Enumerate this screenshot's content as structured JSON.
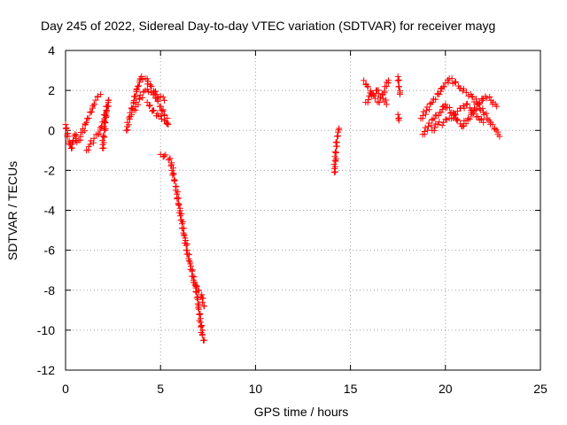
{
  "chart_data": {
    "type": "scatter",
    "title": "Day 245 of 2022, Sidereal Day-to-day VTEC variation (SDTVAR) for receiver mayg",
    "xlabel": "GPS time / hours",
    "ylabel": "SDTVAR / TECUs",
    "xlim": [
      0,
      25
    ],
    "ylim": [
      -12,
      4
    ],
    "xticks": [
      0,
      5,
      10,
      15,
      20,
      25
    ],
    "yticks": [
      -12,
      -10,
      -8,
      -6,
      -4,
      -2,
      0,
      2,
      4
    ],
    "grid": true,
    "marker": "+",
    "color": "#ff0000",
    "series": [
      {
        "name": "SDTVAR",
        "segments": [
          {
            "x": [
              0.0,
              0.1,
              0.2,
              0.3,
              0.4,
              0.5,
              0.6
            ],
            "y": [
              0.3,
              -0.3,
              -0.7,
              -0.9,
              -0.5,
              -0.2,
              -0.6
            ]
          },
          {
            "x": [
              0.7,
              0.9,
              1.1,
              1.3,
              1.5,
              1.7,
              1.85
            ],
            "y": [
              -0.5,
              -0.1,
              0.4,
              0.9,
              1.3,
              1.7,
              1.8
            ]
          },
          {
            "x": [
              1.1,
              1.3,
              1.5,
              1.7,
              1.9,
              2.1,
              2.25
            ],
            "y": [
              -1.0,
              -0.7,
              -0.4,
              -0.2,
              0.2,
              0.8,
              1.4
            ]
          },
          {
            "x": [
              1.95,
              2.05,
              2.15,
              2.25
            ],
            "y": [
              -0.9,
              0.0,
              1.0,
              1.5
            ]
          },
          {
            "x": [
              3.2,
              3.4,
              3.6,
              3.8,
              4.0,
              4.2,
              4.5,
              4.8,
              5.0,
              5.2,
              5.4
            ],
            "y": [
              0.0,
              0.7,
              1.5,
              2.2,
              2.7,
              2.6,
              2.2,
              1.6,
              1.2,
              0.8,
              0.3
            ]
          },
          {
            "x": [
              3.6,
              3.9,
              4.2,
              4.5,
              4.8,
              5.0,
              5.2
            ],
            "y": [
              1.0,
              1.6,
              2.0,
              1.9,
              1.8,
              1.7,
              1.5
            ]
          },
          {
            "x": [
              4.3,
              4.6,
              4.9,
              5.2,
              5.4
            ],
            "y": [
              1.4,
              1.0,
              0.7,
              0.5,
              0.3
            ]
          },
          {
            "x": [
              5.0,
              5.5,
              5.8,
              6.1,
              6.4,
              6.7,
              6.9,
              7.0,
              7.1,
              7.2,
              7.3
            ],
            "y": [
              -1.2,
              -1.4,
              -2.8,
              -4.5,
              -6.0,
              -7.3,
              -8.1,
              -8.8,
              -9.6,
              -10.2,
              -10.5
            ]
          },
          {
            "x": [
              6.8,
              7.0,
              7.2,
              7.3
            ],
            "y": [
              -7.6,
              -8.0,
              -8.4,
              -8.8
            ]
          },
          {
            "x": [
              14.15,
              14.2,
              14.25,
              14.3,
              14.4
            ],
            "y": [
              -2.1,
              -1.5,
              -0.8,
              -0.3,
              0.1
            ]
          },
          {
            "x": [
              15.7,
              15.9,
              16.1,
              16.3,
              16.5,
              16.7,
              16.9,
              17.0
            ],
            "y": [
              2.5,
              2.2,
              1.8,
              1.6,
              1.4,
              1.8,
              2.2,
              2.5
            ]
          },
          {
            "x": [
              15.8,
              16.1,
              16.4,
              16.7,
              16.9
            ],
            "y": [
              1.4,
              1.7,
              2.0,
              1.6,
              1.3
            ]
          },
          {
            "x": [
              17.5,
              17.55,
              17.6
            ],
            "y": [
              2.7,
              2.2,
              1.8
            ]
          },
          {
            "x": [
              17.5,
              17.55
            ],
            "y": [
              0.8,
              0.5
            ]
          },
          {
            "x": [
              18.7,
              19.0,
              19.3,
              19.6,
              19.9,
              20.2,
              20.5,
              20.8,
              21.1,
              21.4,
              21.7,
              22.0,
              22.3,
              22.6,
              22.85
            ],
            "y": [
              0.6,
              1.0,
              1.4,
              1.8,
              2.2,
              2.6,
              2.4,
              2.1,
              1.9,
              1.7,
              1.3,
              0.9,
              0.5,
              0.1,
              -0.3
            ]
          },
          {
            "x": [
              18.8,
              19.1,
              19.4,
              19.7,
              20.0,
              20.3,
              20.6,
              20.9,
              21.2,
              21.5,
              21.8,
              22.1,
              22.4,
              22.7
            ],
            "y": [
              -0.2,
              0.2,
              0.6,
              0.9,
              1.3,
              0.9,
              0.5,
              0.2,
              0.6,
              1.0,
              1.4,
              1.7,
              1.5,
              1.2
            ]
          },
          {
            "x": [
              19.3,
              19.6,
              19.9,
              20.2,
              20.5,
              20.8,
              21.1,
              21.4,
              21.7,
              22.0
            ],
            "y": [
              0.0,
              0.3,
              0.4,
              0.6,
              0.8,
              1.1,
              1.3,
              1.0,
              0.7,
              0.4
            ]
          }
        ]
      }
    ]
  }
}
